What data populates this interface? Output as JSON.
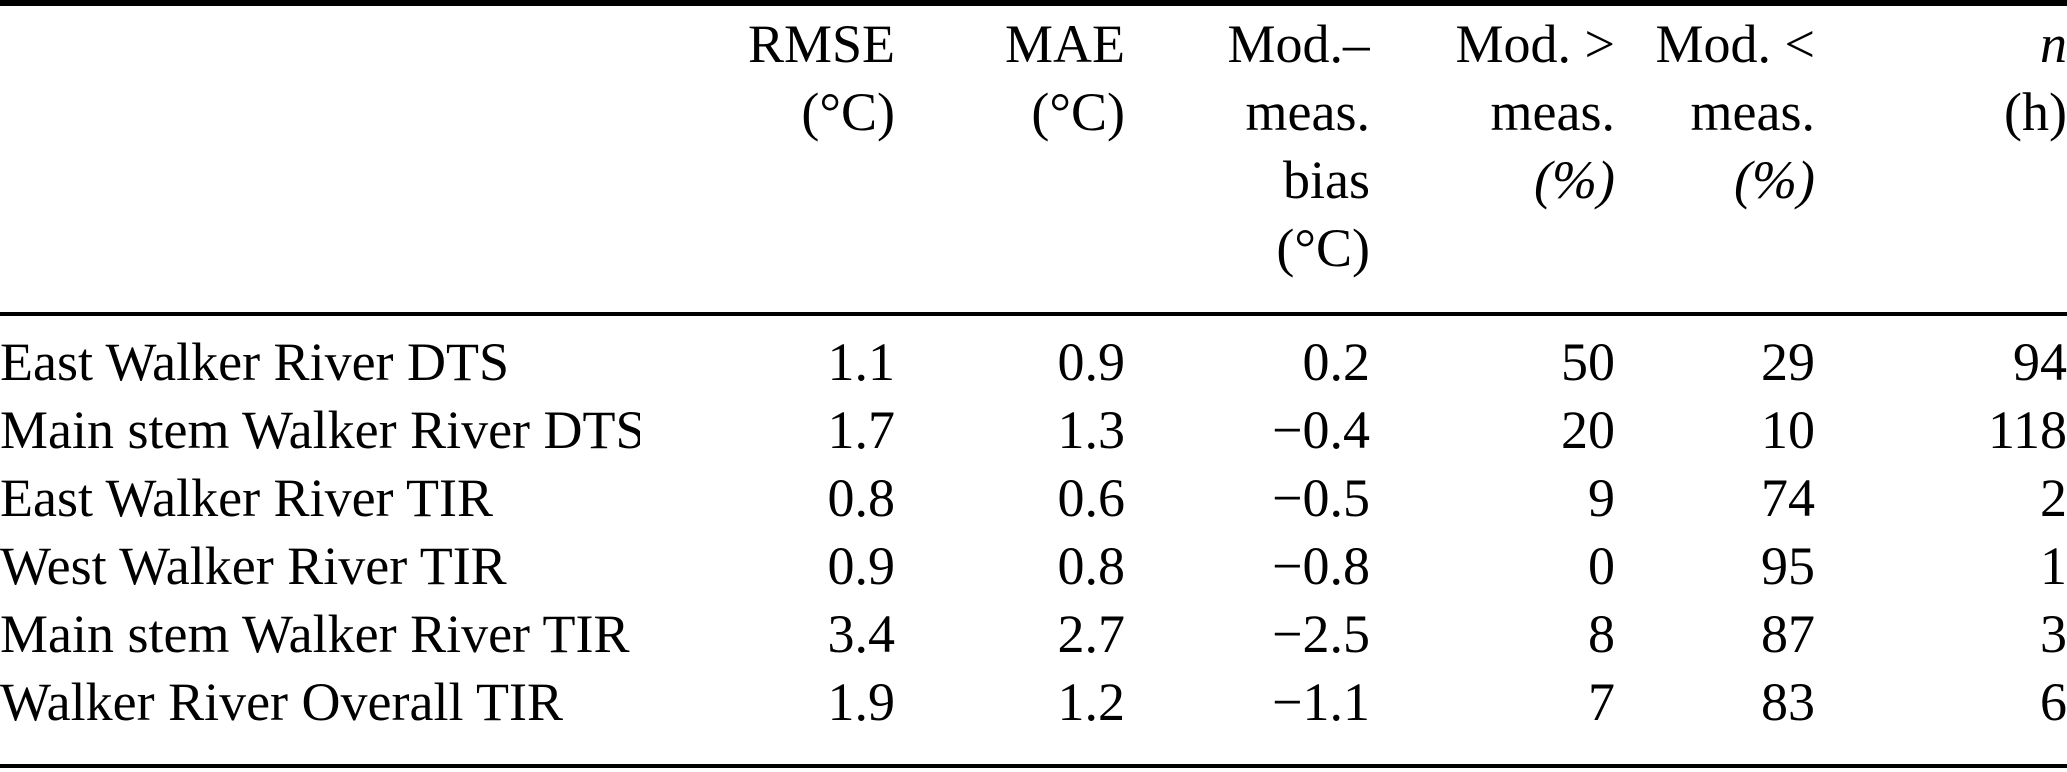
{
  "colors": {
    "background": "#ffffff",
    "text": "#000000",
    "rule": "#000000"
  },
  "table": {
    "columns": [
      {
        "id": "site",
        "align": "left",
        "header_lines": []
      },
      {
        "id": "rmse",
        "align": "right",
        "header_lines": [
          "RMSE",
          "(°C)"
        ]
      },
      {
        "id": "mae",
        "align": "right",
        "header_lines": [
          "MAE",
          "(°C)"
        ]
      },
      {
        "id": "bias",
        "align": "right",
        "header_lines": [
          "Mod.–",
          "meas.",
          "bias",
          "(°C)"
        ]
      },
      {
        "id": "mod_gt",
        "align": "right",
        "header_lines": [
          "Mod. >",
          "meas.",
          "(%)"
        ],
        "italic_lines": [
          2
        ]
      },
      {
        "id": "mod_lt",
        "align": "right",
        "header_lines": [
          "Mod. <",
          "meas.",
          "(%)"
        ],
        "italic_lines": [
          2
        ]
      },
      {
        "id": "n",
        "align": "right",
        "header_lines": [
          "n",
          "(h)"
        ],
        "italic_lines": [
          0
        ]
      }
    ],
    "rows": [
      {
        "site": "East Walker River DTS",
        "rmse": "1.1",
        "mae": "0.9",
        "bias": "0.2",
        "mod_gt": "50",
        "mod_lt": "29",
        "n": "94"
      },
      {
        "site": "Main stem Walker River DTS",
        "rmse": "1.7",
        "mae": "1.3",
        "bias": "−0.4",
        "mod_gt": "20",
        "mod_lt": "10",
        "n": "118"
      },
      {
        "site": "East Walker River TIR",
        "rmse": "0.8",
        "mae": "0.6",
        "bias": "−0.5",
        "mod_gt": "9",
        "mod_lt": "74",
        "n": "2"
      },
      {
        "site": "West Walker River TIR",
        "rmse": "0.9",
        "mae": "0.8",
        "bias": "−0.8",
        "mod_gt": "0",
        "mod_lt": "95",
        "n": "1"
      },
      {
        "site": "Main stem Walker River TIR",
        "rmse": "3.4",
        "mae": "2.7",
        "bias": "−2.5",
        "mod_gt": "8",
        "mod_lt": "87",
        "n": "3"
      },
      {
        "site": "Walker River Overall TIR",
        "rmse": "1.9",
        "mae": "1.2",
        "bias": "−1.1",
        "mod_gt": "7",
        "mod_lt": "83",
        "n": "6"
      }
    ]
  }
}
